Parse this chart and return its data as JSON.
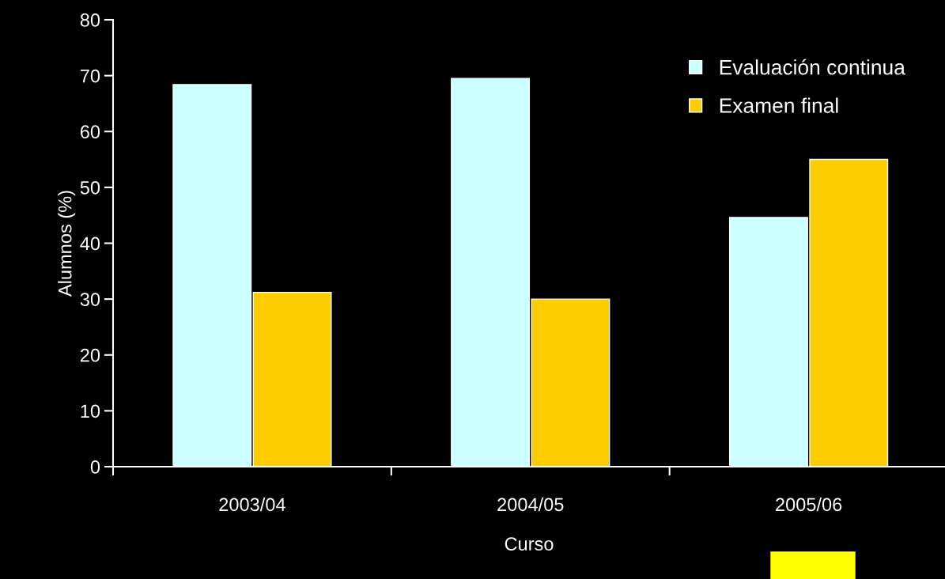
{
  "chart_data": {
    "type": "bar",
    "xlabel": "Curso",
    "ylabel": "Alumnos (%)",
    "categories": [
      "2003/04",
      "2004/05",
      "2005/06"
    ],
    "series": [
      {
        "name": "Evaluación continua",
        "color": "#ccffff",
        "values": [
          68.4,
          69.5,
          44.6
        ]
      },
      {
        "name": "Examen final",
        "color": "#ffcc00",
        "values": [
          31.2,
          30.0,
          55.0
        ]
      }
    ],
    "ylim": [
      0,
      80
    ],
    "yticks": [
      0,
      10,
      20,
      30,
      40,
      50,
      60,
      70,
      80
    ],
    "grid": false,
    "legend": "top right"
  }
}
